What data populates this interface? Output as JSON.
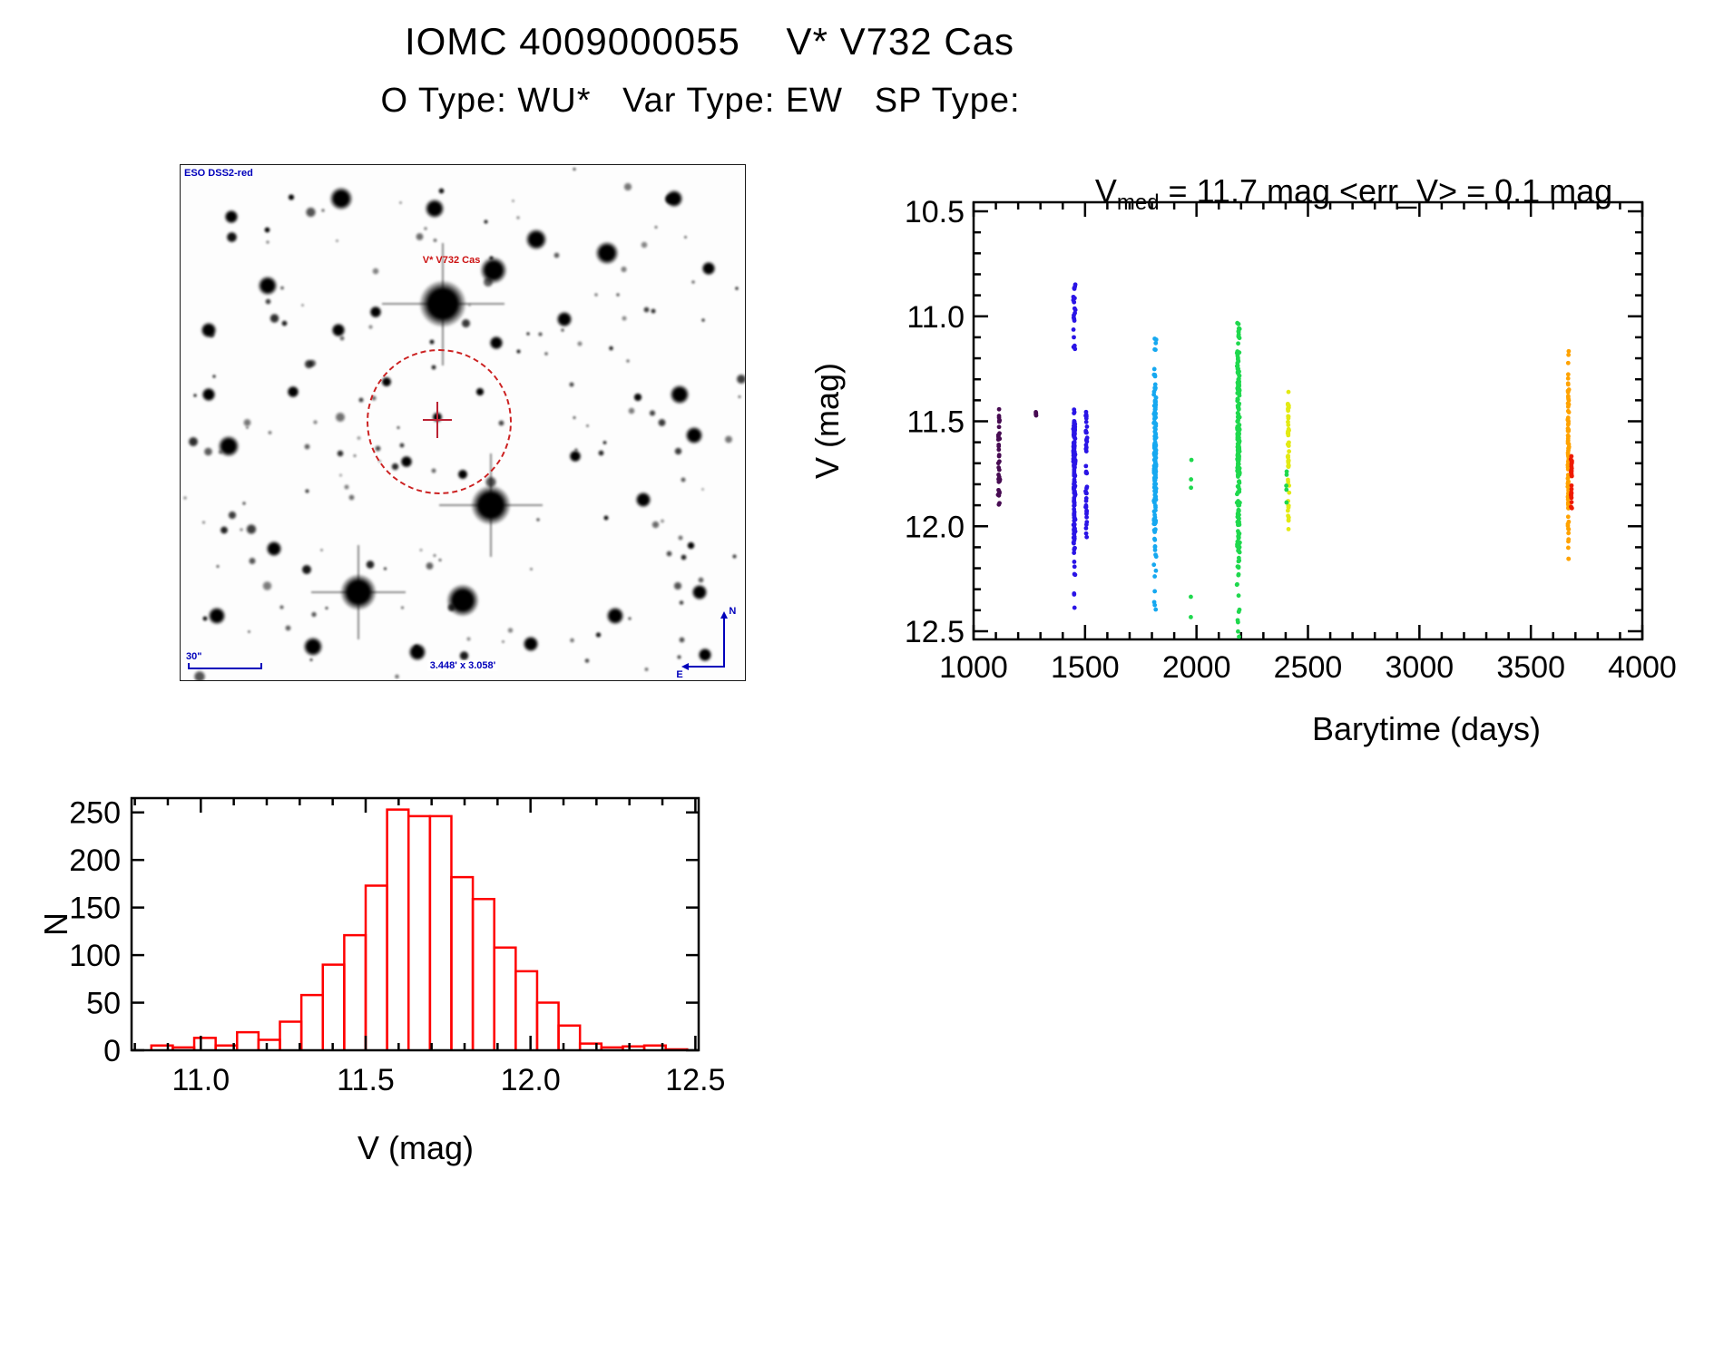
{
  "page_title": {
    "line1": "IOMC 4009000055    V* V732 Cas",
    "line2": "O Type: WU*   Var Type: EW   SP Type:"
  },
  "finder": {
    "survey_label": "ESO DSS2-red",
    "target_label": "V* V732 Cas",
    "scale_label": "30\"",
    "fov_label": "3.448' x 3.058'",
    "compass_north": "N",
    "compass_east": "E",
    "annotation_color": "#0000bb",
    "target_label_color": "#cc1111",
    "marker_color": "#cc2222",
    "circle": {
      "cx_rel": 0.455,
      "cy_rel": 0.495,
      "r_rel": 0.125
    },
    "big_stars": [
      [
        0.465,
        0.27,
        26,
        1
      ],
      [
        0.555,
        0.205,
        15,
        0
      ],
      [
        0.63,
        0.145,
        12,
        0
      ],
      [
        0.285,
        0.065,
        13,
        0
      ],
      [
        0.45,
        0.085,
        11,
        0
      ],
      [
        0.09,
        0.1,
        8,
        0
      ],
      [
        0.155,
        0.235,
        11,
        0
      ],
      [
        0.05,
        0.32,
        9,
        0
      ],
      [
        0.085,
        0.545,
        12,
        0
      ],
      [
        0.05,
        0.445,
        8,
        0
      ],
      [
        0.2,
        0.44,
        7,
        0
      ],
      [
        0.28,
        0.32,
        8,
        0
      ],
      [
        0.345,
        0.285,
        7,
        0
      ],
      [
        0.56,
        0.345,
        8,
        0
      ],
      [
        0.68,
        0.3,
        9,
        0
      ],
      [
        0.755,
        0.17,
        13,
        0
      ],
      [
        0.875,
        0.065,
        10,
        0
      ],
      [
        0.935,
        0.2,
        8,
        0
      ],
      [
        0.885,
        0.445,
        11,
        0
      ],
      [
        0.91,
        0.525,
        10,
        0
      ],
      [
        0.82,
        0.65,
        9,
        0
      ],
      [
        0.7,
        0.565,
        7,
        0
      ],
      [
        0.55,
        0.66,
        22,
        1
      ],
      [
        0.5,
        0.845,
        18,
        0
      ],
      [
        0.315,
        0.83,
        20,
        1
      ],
      [
        0.165,
        0.745,
        9,
        0
      ],
      [
        0.065,
        0.875,
        10,
        0
      ],
      [
        0.235,
        0.935,
        11,
        0
      ],
      [
        0.42,
        0.945,
        10,
        0
      ],
      [
        0.62,
        0.93,
        9,
        0
      ],
      [
        0.77,
        0.875,
        10,
        0
      ],
      [
        0.92,
        0.83,
        9,
        0
      ],
      [
        0.93,
        0.95,
        8,
        0
      ],
      [
        0.455,
        0.49,
        6,
        0
      ],
      [
        0.4,
        0.575,
        7,
        0
      ],
      [
        0.5,
        0.6,
        6,
        0
      ],
      [
        0.365,
        0.42,
        6,
        0
      ],
      [
        0.53,
        0.44,
        5,
        0
      ]
    ],
    "random_stars": {
      "count": 155,
      "seed": 42
    }
  },
  "chart_data": [
    {
      "type": "scatter",
      "title": {
        "base": "V",
        "sub": "med",
        "rest": " = 11.7 mag <err_V> = 0.1 mag"
      },
      "xlabel": "Barytime (days)",
      "ylabel": "V (mag)",
      "xlim": [
        1000,
        4000
      ],
      "ylim": [
        10.5,
        12.5
      ],
      "y_inverted": true,
      "x_major_ticks": [
        1000,
        1500,
        2000,
        2500,
        3000,
        3500,
        4000
      ],
      "x_minor_step": 100,
      "y_major_ticks": [
        10.5,
        11.0,
        11.5,
        12.0,
        12.5
      ],
      "y_minor_step": 0.1,
      "grid": false,
      "clusters": [
        {
          "x": 1114,
          "jx": 5,
          "color": "#470b52",
          "bands": [
            [
              11.44,
              11.53,
              7
            ],
            [
              11.55,
              11.64,
              9
            ],
            [
              11.66,
              11.7,
              4
            ],
            [
              11.72,
              11.79,
              9
            ],
            [
              11.82,
              11.9,
              8
            ]
          ]
        },
        {
          "x": 1280,
          "jx": 3,
          "color": "#470b52",
          "bands": [
            [
              11.42,
              11.5,
              4
            ]
          ]
        },
        {
          "x": 1452,
          "jx": 5,
          "color": "#2a14e6",
          "bands": [
            [
              10.84,
              11.03,
              16
            ],
            [
              11.06,
              11.16,
              5
            ],
            [
              11.44,
              11.53,
              8
            ],
            [
              11.5,
              11.72,
              60
            ],
            [
              11.6,
              12.08,
              90
            ],
            [
              12.08,
              12.24,
              9
            ],
            [
              12.32,
              12.4,
              3
            ]
          ]
        },
        {
          "x": 1506,
          "jx": 4,
          "color": "#2a14e6",
          "bands": [
            [
              11.44,
              11.56,
              10
            ],
            [
              11.57,
              11.97,
              28
            ],
            [
              11.97,
              12.06,
              5
            ]
          ]
        },
        {
          "x": 1814,
          "jx": 6,
          "color": "#16a8f0",
          "bands": [
            [
              11.1,
              11.18,
              5
            ],
            [
              11.25,
              11.42,
              20
            ],
            [
              11.42,
              11.8,
              80
            ],
            [
              11.6,
              12.05,
              70
            ],
            [
              12.05,
              12.24,
              10
            ],
            [
              12.3,
              12.42,
              4
            ]
          ]
        },
        {
          "x": 1977,
          "jx": 4,
          "color": "#1fd84d",
          "bands": [
            [
              11.63,
              11.7,
              1
            ],
            [
              11.73,
              11.78,
              1
            ],
            [
              11.8,
              11.85,
              1
            ],
            [
              12.33,
              12.37,
              1
            ],
            [
              12.41,
              12.45,
              1
            ]
          ]
        },
        {
          "x": 2188,
          "jx": 7,
          "color": "#1fd84d",
          "bands": [
            [
              10.98,
              11.08,
              7
            ],
            [
              11.08,
              11.3,
              28
            ],
            [
              11.3,
              11.75,
              100
            ],
            [
              11.55,
              12.1,
              90
            ],
            [
              12.1,
              12.3,
              14
            ],
            [
              12.33,
              12.46,
              5
            ],
            [
              12.49,
              12.53,
              2
            ]
          ]
        },
        {
          "x": 2412,
          "jx": 4,
          "color": "#e3ea12",
          "bands": [
            [
              11.36,
              11.45,
              9
            ],
            [
              11.47,
              11.58,
              11
            ],
            [
              11.6,
              11.73,
              15
            ],
            [
              11.76,
              11.96,
              11
            ],
            [
              11.97,
              12.02,
              3
            ]
          ]
        },
        {
          "x": 2404,
          "jx": 2,
          "color": "#1fd84d",
          "bands": [
            [
              11.72,
              11.76,
              2
            ],
            [
              11.79,
              11.83,
              2
            ],
            [
              11.88,
              11.91,
              1
            ]
          ]
        },
        {
          "x": 3668,
          "jx": 4,
          "color": "#ffa200",
          "bands": [
            [
              11.16,
              11.23,
              3
            ],
            [
              11.25,
              11.42,
              14
            ],
            [
              11.42,
              11.95,
              65
            ],
            [
              11.95,
              12.08,
              9
            ],
            [
              12.1,
              12.17,
              3
            ]
          ]
        },
        {
          "x": 3682,
          "jx": 3,
          "color": "#ee1a00",
          "bands": [
            [
              11.66,
              11.77,
              16
            ],
            [
              11.8,
              11.92,
              12
            ]
          ]
        }
      ]
    },
    {
      "type": "histogram",
      "xlabel": "V (mag)",
      "ylabel": "N",
      "bar_color": "#ff0000",
      "bin_start": 10.85,
      "bin_width": 0.065,
      "counts": [
        5,
        3,
        13,
        5,
        19,
        11,
        30,
        58,
        90,
        121,
        173,
        253,
        246,
        246,
        182,
        159,
        108,
        83,
        50,
        26,
        7,
        3,
        4,
        5,
        1
      ],
      "xlim": [
        10.79,
        12.51
      ],
      "ylim": [
        0,
        265
      ],
      "x_major_ticks": [
        11.0,
        11.5,
        12.0,
        12.5
      ],
      "x_minor_step": 0.1,
      "y_major_ticks": [
        0,
        50,
        100,
        150,
        200,
        250
      ],
      "grid": false
    }
  ]
}
